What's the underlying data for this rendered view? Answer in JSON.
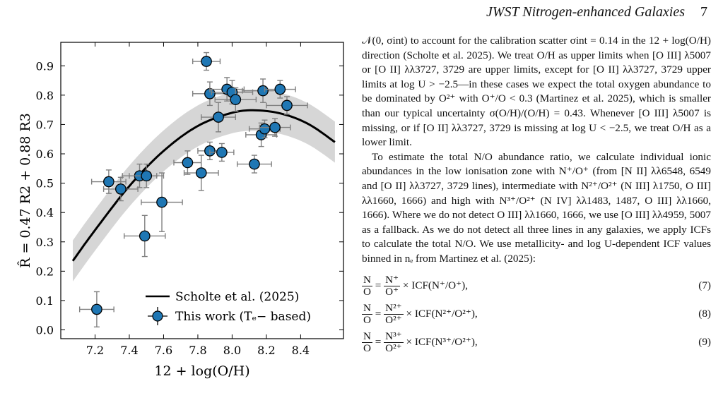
{
  "header": {
    "title": "JWST Nitrogen-enhanced Galaxies",
    "page": "7"
  },
  "figure": {
    "ylabel": "R̂ = 0.47 R2 + 0.88 R3",
    "xlabel": "12 + log(O/H)",
    "legend": {
      "line_label": "Scholte et al. (2025)",
      "points_label": "This work (Tₑ− based)"
    },
    "colors": {
      "points": "#1f77b4",
      "curve": "#000000",
      "band": "#d6d6d6",
      "errorbars": "#808080"
    }
  },
  "chart_data": {
    "type": "scatter",
    "xlabel": "12 + log(O/H)",
    "ylabel": "R̂ = 0.47 R2 + 0.88 R3",
    "xlim": [
      7.0,
      8.65
    ],
    "ylim": [
      -0.03,
      0.98
    ],
    "xticks": [
      "7.2",
      "7.4",
      "7.6",
      "7.8",
      "8.0",
      "8.2",
      "8.4"
    ],
    "yticks": [
      "0.0",
      "0.1",
      "0.2",
      "0.3",
      "0.4",
      "0.5",
      "0.6",
      "0.7",
      "0.8",
      "0.9"
    ],
    "legend_position": "bottom-right",
    "series": [
      {
        "name": "This work (Tₑ− based)",
        "kind": "points",
        "points": [
          {
            "x": 7.21,
            "y": 0.07,
            "xerr": 0.1,
            "yerr": 0.06
          },
          {
            "x": 7.28,
            "y": 0.505,
            "xerr": 0.1,
            "yerr": 0.04
          },
          {
            "x": 7.35,
            "y": 0.48,
            "xerr": 0.1,
            "yerr": 0.04
          },
          {
            "x": 7.46,
            "y": 0.525,
            "xerr": 0.1,
            "yerr": 0.04
          },
          {
            "x": 7.5,
            "y": 0.525,
            "xerr": 0.1,
            "yerr": 0.04
          },
          {
            "x": 7.49,
            "y": 0.32,
            "xerr": 0.12,
            "yerr": 0.07
          },
          {
            "x": 7.59,
            "y": 0.435,
            "xerr": 0.12,
            "yerr": 0.1
          },
          {
            "x": 7.74,
            "y": 0.57,
            "xerr": 0.08,
            "yerr": 0.04
          },
          {
            "x": 7.82,
            "y": 0.535,
            "xerr": 0.1,
            "yerr": 0.06
          },
          {
            "x": 7.87,
            "y": 0.61,
            "xerr": 0.07,
            "yerr": 0.03
          },
          {
            "x": 7.94,
            "y": 0.605,
            "xerr": 0.07,
            "yerr": 0.03
          },
          {
            "x": 7.85,
            "y": 0.915,
            "xerr": 0.08,
            "yerr": 0.03
          },
          {
            "x": 7.87,
            "y": 0.805,
            "xerr": 0.1,
            "yerr": 0.04
          },
          {
            "x": 7.92,
            "y": 0.725,
            "xerr": 0.1,
            "yerr": 0.05
          },
          {
            "x": 7.97,
            "y": 0.82,
            "xerr": 0.1,
            "yerr": 0.04
          },
          {
            "x": 8.0,
            "y": 0.81,
            "xerr": 0.12,
            "yerr": 0.04
          },
          {
            "x": 8.02,
            "y": 0.785,
            "xerr": 0.12,
            "yerr": 0.04
          },
          {
            "x": 8.13,
            "y": 0.565,
            "xerr": 0.1,
            "yerr": 0.03
          },
          {
            "x": 8.17,
            "y": 0.665,
            "xerr": 0.09,
            "yerr": 0.04
          },
          {
            "x": 8.19,
            "y": 0.685,
            "xerr": 0.09,
            "yerr": 0.03
          },
          {
            "x": 8.25,
            "y": 0.69,
            "xerr": 0.09,
            "yerr": 0.03
          },
          {
            "x": 8.18,
            "y": 0.815,
            "xerr": 0.12,
            "yerr": 0.04
          },
          {
            "x": 8.28,
            "y": 0.82,
            "xerr": 0.09,
            "yerr": 0.03
          },
          {
            "x": 8.32,
            "y": 0.765,
            "xerr": 0.12,
            "yerr": 0.03
          }
        ]
      },
      {
        "name": "Scholte et al. (2025)",
        "kind": "curve",
        "x": [
          7.07,
          7.2,
          7.4,
          7.6,
          7.8,
          8.0,
          8.15,
          8.3,
          8.45,
          8.6
        ],
        "y": [
          0.235,
          0.34,
          0.49,
          0.61,
          0.695,
          0.74,
          0.748,
          0.735,
          0.7,
          0.64
        ],
        "band_halfwidth": 0.07
      }
    ]
  },
  "text": {
    "p1": "𝒩(0, σint) to account for the calibration scatter σint = 0.14 in the 12 + log(O/H) direction (Scholte et al. 2025). We treat O/H as upper limits when [O III] λ5007 or [O II] λλ3727, 3729 are upper limits, except for [O II] λλ3727, 3729 upper limits at log U > −2.5—in these cases we expect the total oxygen abundance to be dominated by O²⁺ with O⁺/O < 0.3 (Martinez et al. 2025), which is smaller than our typical uncertainty σ(O/H)/(O/H) = 0.43. Whenever [O III] λ5007 is missing, or if [O II] λλ3727, 3729 is missing at log U < −2.5, we treat O/H as a lower limit.",
    "p2": "To estimate the total N/O abundance ratio, we calculate individual ionic abundances in the low ionisation zone with N⁺/O⁺ (from [N II] λλ6548, 6549 and [O II] λλ3727, 3729 lines), intermediate with N²⁺/O²⁺ (N III] λ1750, O III] λλ1660, 1666) and high with N³⁺/O²⁺ (N IV] λλ1483, 1487, O III] λλ1660, 1666). Where we do not detect O III] λλ1660, 1666, we use [O III] λλ4959, 5007 as a fallback. As we do not detect all three lines in any galaxies, we apply ICFs to calculate the total N/O. We use metallicity- and log U-dependent ICF values binned in nₑ from Martinez et al. (2025):",
    "equations": [
      {
        "lhs_num": "N",
        "lhs_den": "O",
        "rhs_num": "N⁺",
        "rhs_den": "O⁺",
        "icf": "× ICF(N⁺/O⁺),",
        "num": "(7)"
      },
      {
        "lhs_num": "N",
        "lhs_den": "O",
        "rhs_num": "N²⁺",
        "rhs_den": "O²⁺",
        "icf": "× ICF(N²⁺/O²⁺),",
        "num": "(8)"
      },
      {
        "lhs_num": "N",
        "lhs_den": "O",
        "rhs_num": "N³⁺",
        "rhs_den": "O²⁺",
        "icf": "× ICF(N³⁺/O²⁺),",
        "num": "(9)"
      }
    ]
  }
}
